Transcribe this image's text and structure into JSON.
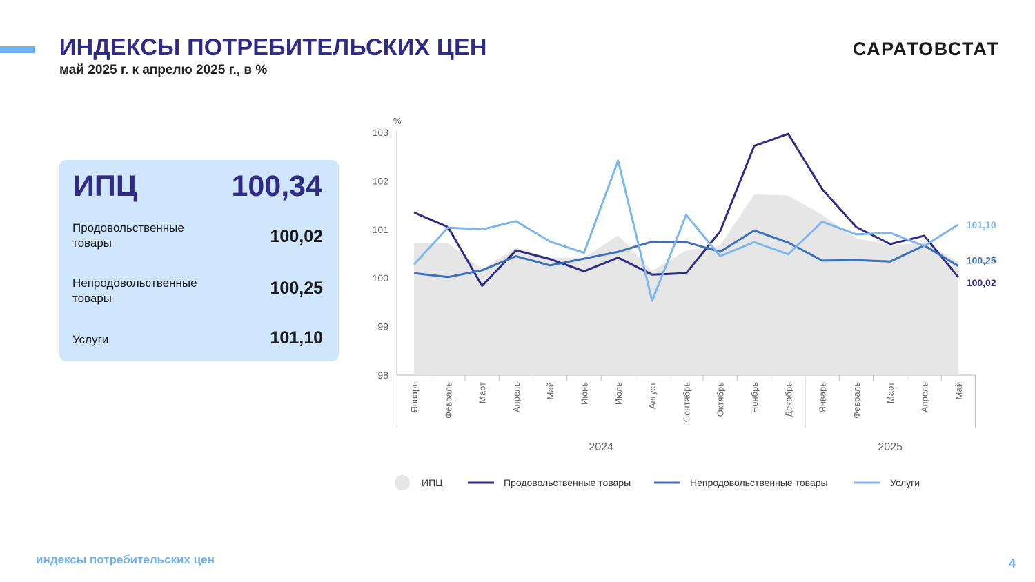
{
  "header": {
    "title": "ИНДЕКСЫ ПОТРЕБИТЕЛЬСКИХ ЦЕН",
    "subtitle": "май 2025 г. к апрелю 2025 г., в %",
    "brand": "САРАТОВСТАТ"
  },
  "summary": {
    "main_label": "ИПЦ",
    "main_value": "100,34",
    "rows": [
      {
        "label": "Продовольственные товары",
        "value": "100,02"
      },
      {
        "label": "Непродовольственные товары",
        "value": "100,25"
      },
      {
        "label": "Услуги",
        "value": "101,10"
      }
    ]
  },
  "colors": {
    "title": "#2e2a86",
    "accent": "#6fb1f3",
    "card_bg": "#d0e6fd",
    "cpi_area": "#e6e6e6",
    "food": "#2e2a86",
    "nonfood": "#3b6fc0",
    "services": "#7db6ef"
  },
  "chart_data": {
    "type": "line",
    "unit_label": "%",
    "ylim": [
      98,
      103
    ],
    "yticks": [
      "98",
      "99",
      "100",
      "101",
      "102",
      "103"
    ],
    "categories": [
      "Январь",
      "Февраль",
      "Март",
      "Апрель",
      "Май",
      "Июнь",
      "Июль",
      "Август",
      "Сентябрь",
      "Октябрь",
      "Ноябрь",
      "Декабрь",
      "Январь",
      "Февраль",
      "Март",
      "Апрель",
      "Май"
    ],
    "year_groups": [
      {
        "label": "2024",
        "from": 0,
        "to": 11
      },
      {
        "label": "2025",
        "from": 12,
        "to": 16
      }
    ],
    "series": [
      {
        "name": "ИПЦ",
        "kind": "area",
        "values": [
          100.72,
          100.72,
          100.18,
          100.62,
          100.42,
          100.42,
          100.88,
          100.15,
          100.57,
          100.67,
          101.72,
          101.7,
          101.3,
          100.82,
          100.68,
          100.72,
          100.34
        ]
      },
      {
        "name": "Продовольственные товары",
        "kind": "line",
        "values": [
          101.35,
          101.05,
          99.84,
          100.57,
          100.39,
          100.14,
          100.42,
          100.07,
          100.1,
          100.96,
          102.72,
          102.97,
          101.83,
          101.05,
          100.7,
          100.87,
          100.02
        ]
      },
      {
        "name": "Непродовольственные товары",
        "kind": "line",
        "values": [
          100.1,
          100.02,
          100.16,
          100.45,
          100.26,
          100.4,
          100.54,
          100.75,
          100.74,
          100.54,
          100.98,
          100.73,
          100.36,
          100.37,
          100.34,
          100.67,
          100.25
        ]
      },
      {
        "name": "Услуги",
        "kind": "line",
        "values": [
          100.28,
          101.04,
          101.0,
          101.17,
          100.75,
          100.52,
          102.42,
          99.53,
          101.3,
          100.45,
          100.74,
          100.49,
          101.16,
          100.9,
          100.93,
          100.66,
          101.1
        ]
      }
    ],
    "end_labels": [
      "100,02",
      "100,25",
      "101,10"
    ],
    "legend_position": "bottom",
    "grid": false
  },
  "footer": {
    "text": "индексы потребительских цен",
    "page": "4"
  }
}
